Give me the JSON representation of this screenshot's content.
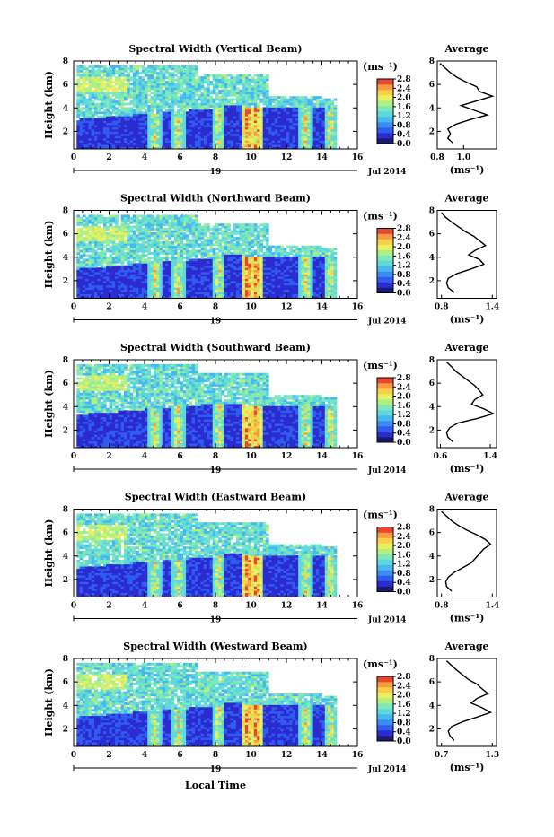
{
  "figure": {
    "x_label": "Local Time",
    "date_label": "Jul 2014",
    "date_tick": "19"
  },
  "colors": {
    "colormap": [
      "#1a1a6e",
      "#2b2bd0",
      "#2f5cf0",
      "#3a8cf5",
      "#45b8f0",
      "#5ed8dc",
      "#7fe8b8",
      "#b0f080",
      "#e8f060",
      "#f8d048",
      "#f89a40",
      "#e84830"
    ],
    "background": "#ffffff",
    "gap": "#ffffff"
  },
  "chart_data": [
    {
      "type": "heatmap",
      "title": "Spectral Width (Vertical Beam)",
      "xlabel": "",
      "ylabel": "Height (km)",
      "xlim": [
        0,
        16
      ],
      "ylim": [
        0.5,
        8
      ],
      "xticks": [
        "0",
        "2",
        "4",
        "6",
        "8",
        "10",
        "12",
        "14",
        "16"
      ],
      "yticks": [
        "2",
        "4",
        "6",
        "8"
      ],
      "colorbar": {
        "unit": "(ms⁻¹)",
        "ticks": [
          "0.0",
          "0.4",
          "0.8",
          "1.2",
          "1.6",
          "2.0",
          "2.4",
          "2.8"
        ],
        "range": [
          0.0,
          2.8
        ]
      },
      "profile": {
        "title": "Average",
        "xlabel": "(ms⁻¹)",
        "xticks": [
          "0.8",
          "1.0"
        ],
        "xlim": [
          0.8,
          1.25
        ],
        "ylim": [
          0.5,
          8
        ],
        "heights": [
          1.0,
          1.4,
          1.8,
          2.2,
          2.6,
          3.0,
          3.4,
          3.8,
          4.2,
          4.6,
          5.0,
          5.4,
          5.8,
          6.2,
          6.6,
          7.0,
          7.4,
          7.8
        ],
        "values": [
          0.92,
          0.88,
          0.9,
          0.88,
          0.94,
          1.05,
          1.18,
          1.08,
          0.98,
          1.1,
          1.22,
          1.12,
          1.1,
          1.02,
          0.95,
          0.9,
          0.86,
          0.82
        ]
      }
    },
    {
      "type": "heatmap",
      "title": "Spectral Width (Northward Beam)",
      "xlabel": "",
      "ylabel": "Height (km)",
      "xlim": [
        0,
        16
      ],
      "ylim": [
        0.5,
        8
      ],
      "xticks": [
        "0",
        "2",
        "4",
        "6",
        "8",
        "10",
        "12",
        "14",
        "16"
      ],
      "yticks": [
        "2",
        "4",
        "6",
        "8"
      ],
      "colorbar": {
        "unit": "(ms⁻¹)",
        "ticks": [
          "0.0",
          "0.4",
          "0.8",
          "1.2",
          "1.6",
          "2.0",
          "2.4",
          "2.8"
        ],
        "range": [
          0.0,
          2.8
        ]
      },
      "profile": {
        "title": "Average",
        "xlabel": "(ms⁻¹)",
        "xticks": [
          "0.8",
          "1.4"
        ],
        "xlim": [
          0.75,
          1.45
        ],
        "ylim": [
          0.5,
          8
        ],
        "heights": [
          1.0,
          1.4,
          1.8,
          2.2,
          2.6,
          3.0,
          3.4,
          3.8,
          4.2,
          4.6,
          5.0,
          5.4,
          5.8,
          6.2,
          6.6,
          7.0,
          7.4,
          7.8
        ],
        "values": [
          0.95,
          0.88,
          0.86,
          0.88,
          0.98,
          1.15,
          1.3,
          1.25,
          1.12,
          1.2,
          1.32,
          1.25,
          1.18,
          1.08,
          1.0,
          0.92,
          0.85,
          0.8
        ]
      }
    },
    {
      "type": "heatmap",
      "title": "Spectral Width (Southward Beam)",
      "xlabel": "",
      "ylabel": "Height (km)",
      "xlim": [
        0,
        16
      ],
      "ylim": [
        0.5,
        8
      ],
      "xticks": [
        "0",
        "2",
        "4",
        "6",
        "8",
        "10",
        "12",
        "14",
        "16"
      ],
      "yticks": [
        "2",
        "4",
        "6",
        "8"
      ],
      "colorbar": {
        "unit": "(ms⁻¹)",
        "ticks": [
          "0.0",
          "0.4",
          "0.8",
          "1.2",
          "1.6",
          "2.0",
          "2.4",
          "2.8"
        ],
        "range": [
          0.0,
          2.8
        ]
      },
      "profile": {
        "title": "Average",
        "xlabel": "(ms⁻¹)",
        "xticks": [
          "0.6",
          "1.4"
        ],
        "xlim": [
          0.55,
          1.5
        ],
        "ylim": [
          0.5,
          8
        ],
        "heights": [
          1.0,
          1.4,
          1.8,
          2.2,
          2.6,
          3.0,
          3.4,
          3.8,
          4.2,
          4.6,
          5.0,
          5.4,
          5.8,
          6.2,
          6.6,
          7.0,
          7.4,
          7.8
        ],
        "values": [
          0.8,
          0.72,
          0.7,
          0.75,
          0.88,
          1.2,
          1.45,
          1.3,
          1.1,
          1.15,
          1.28,
          1.22,
          1.15,
          1.05,
          0.95,
          0.85,
          0.78,
          0.7
        ]
      }
    },
    {
      "type": "heatmap",
      "title": "Spectral Width (Eastward Beam)",
      "xlabel": "",
      "ylabel": "Height (km)",
      "xlim": [
        0,
        16
      ],
      "ylim": [
        0.5,
        8
      ],
      "xticks": [
        "0",
        "2",
        "4",
        "6",
        "8",
        "10",
        "12",
        "14",
        "16"
      ],
      "yticks": [
        "2",
        "4",
        "6",
        "8"
      ],
      "colorbar": {
        "unit": "(ms⁻¹)",
        "ticks": [
          "0.0",
          "0.4",
          "0.8",
          "1.2",
          "1.6",
          "2.0",
          "2.4",
          "2.8"
        ],
        "range": [
          0.0,
          2.8
        ]
      },
      "profile": {
        "title": "Average",
        "xlabel": "(ms⁻¹)",
        "xticks": [
          "0.8",
          "1.4"
        ],
        "xlim": [
          0.75,
          1.45
        ],
        "ylim": [
          0.5,
          8
        ],
        "heights": [
          1.0,
          1.4,
          1.8,
          2.2,
          2.6,
          3.0,
          3.4,
          3.8,
          4.2,
          4.6,
          5.0,
          5.4,
          5.8,
          6.2,
          6.6,
          7.0,
          7.4,
          7.8
        ],
        "values": [
          0.92,
          0.86,
          0.85,
          0.88,
          0.95,
          1.05,
          1.15,
          1.2,
          1.25,
          1.3,
          1.38,
          1.32,
          1.22,
          1.1,
          1.0,
          0.92,
          0.86,
          0.8
        ]
      }
    },
    {
      "type": "heatmap",
      "title": "Spectral Width (Westward Beam)",
      "xlabel": "Local Time",
      "ylabel": "Height (km)",
      "xlim": [
        0,
        16
      ],
      "ylim": [
        0.5,
        8
      ],
      "xticks": [
        "0",
        "2",
        "4",
        "6",
        "8",
        "10",
        "12",
        "14",
        "16"
      ],
      "yticks": [
        "2",
        "4",
        "6",
        "8"
      ],
      "colorbar": {
        "unit": "(ms⁻¹)",
        "ticks": [
          "0.0",
          "0.4",
          "0.8",
          "1.2",
          "1.6",
          "2.0",
          "2.4",
          "2.8"
        ],
        "range": [
          0.0,
          2.8
        ]
      },
      "profile": {
        "title": "Average",
        "xlabel": "(ms⁻¹)",
        "xticks": [
          "0.7",
          "1.3"
        ],
        "xlim": [
          0.65,
          1.35
        ],
        "ylim": [
          0.5,
          8
        ],
        "heights": [
          1.0,
          1.4,
          1.8,
          2.2,
          2.6,
          3.0,
          3.4,
          3.8,
          4.2,
          4.6,
          5.0,
          5.4,
          5.8,
          6.2,
          6.6,
          7.0,
          7.4,
          7.8
        ],
        "values": [
          0.85,
          0.8,
          0.78,
          0.82,
          0.95,
          1.12,
          1.28,
          1.18,
          1.05,
          1.12,
          1.25,
          1.18,
          1.12,
          1.02,
          0.95,
          0.88,
          0.82,
          0.76
        ]
      }
    }
  ]
}
